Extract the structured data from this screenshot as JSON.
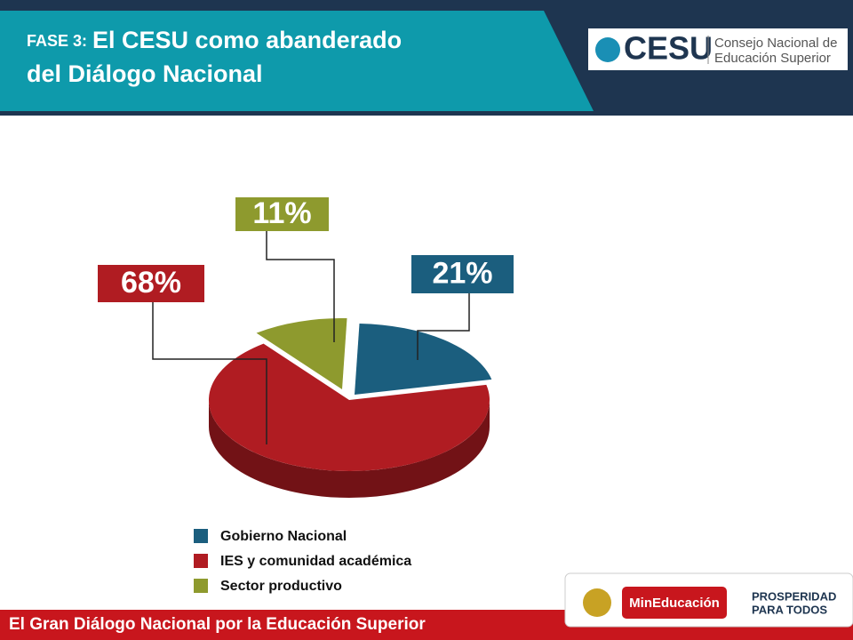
{
  "header": {
    "phase": "FASE 3:",
    "title_line1": "El CESU como abanderado",
    "title_line2": "del Diálogo Nacional"
  },
  "logo": {
    "acronym": "CESU",
    "line1": "Consejo Nacional de",
    "line2": "Educación Superior"
  },
  "chart_data": {
    "type": "pie",
    "categories": [
      "Gobierno Nacional",
      "IES y comunidad académica",
      "Sector productivo"
    ],
    "values": [
      21,
      68,
      11
    ],
    "value_labels": [
      "21%",
      "68%",
      "11%"
    ],
    "colors": [
      "#1b5e7e",
      "#b01c22",
      "#8e9a2e"
    ]
  },
  "footer": {
    "text": "El Gran Diálogo Nacional por la Educación Superior",
    "ministry": "MinEducación",
    "slogan1": "PROSPERIDAD",
    "slogan2": "PARA TODOS"
  }
}
